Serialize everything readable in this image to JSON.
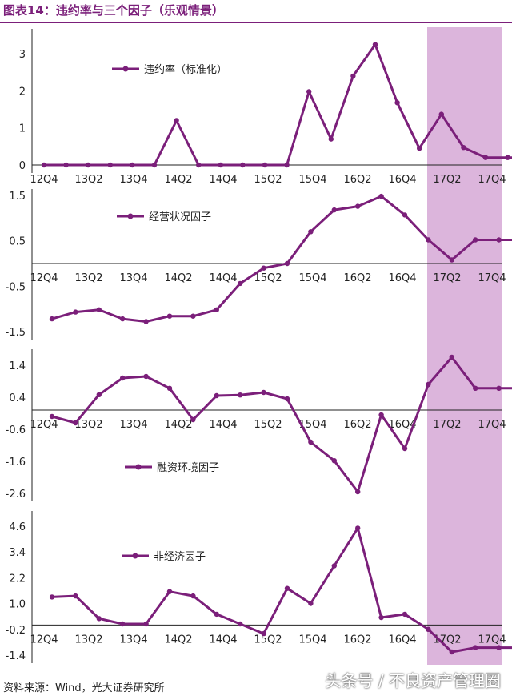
{
  "figure_title": "图表14：违约率与三个因子（乐观情景）",
  "source_note": "资料来源：Wind，光大证券研究所",
  "watermark": "头条号 / 不良资产管理圈",
  "colors": {
    "line": "#7b1f7a",
    "shade": "#dcb5dc",
    "title": "#7b1f7a"
  },
  "chart_data": [
    {
      "type": "line",
      "name": "违约率（标准化）",
      "legend": "违约率（标准化）",
      "ylim": [
        0,
        3.5
      ],
      "yticks": [
        "0",
        "1",
        "2",
        "3"
      ],
      "ytick_values": [
        0,
        1,
        2,
        3
      ],
      "xtick_labels": [
        "12Q4",
        "13Q2",
        "13Q4",
        "14Q2",
        "14Q4",
        "15Q2",
        "15Q4",
        "16Q2",
        "16Q4",
        "17Q2",
        "17Q4"
      ],
      "values": [
        0,
        0,
        0,
        0,
        0,
        0,
        1.2,
        0,
        0,
        0,
        0,
        0,
        1.98,
        0.7,
        2.4,
        3.25,
        1.68,
        0.45,
        1.37,
        0.47,
        0.2,
        0.2,
        0.2,
        0.2
      ]
    },
    {
      "type": "line",
      "name": "经营状况因子",
      "legend": "经营状况因子",
      "ylim": [
        -1.5,
        1.5
      ],
      "yticks": [
        "1.5",
        "0.5",
        "-0.5",
        "-1.5"
      ],
      "ytick_values": [
        1.5,
        0.5,
        -0.5,
        -1.5
      ],
      "xtick_labels": [
        "12Q4",
        "13Q2",
        "13Q4",
        "14Q2",
        "14Q4",
        "15Q2",
        "15Q4",
        "16Q2",
        "16Q4",
        "17Q2",
        "17Q4"
      ],
      "values": [
        -1.22,
        -1.07,
        -1.02,
        -1.22,
        -1.28,
        -1.16,
        -1.16,
        -1.02,
        -0.44,
        -0.1,
        0,
        0.7,
        1.18,
        1.26,
        1.48,
        1.07,
        0.52,
        0.08,
        0.52,
        0.52,
        0.52,
        0.52
      ]
    },
    {
      "type": "line",
      "name": "融资环境因子",
      "legend": "融资环境因子",
      "ylim": [
        -2.6,
        1.7
      ],
      "yticks": [
        "1.4",
        "0.4",
        "-0.6",
        "-1.6",
        "-2.6"
      ],
      "ytick_values": [
        1.4,
        0.4,
        -0.6,
        -1.6,
        -2.6
      ],
      "xtick_labels": [
        "12Q4",
        "13Q2",
        "13Q4",
        "14Q2",
        "14Q4",
        "15Q2",
        "15Q4",
        "16Q2",
        "16Q4",
        "17Q2",
        "17Q4"
      ],
      "values": [
        -0.2,
        -0.4,
        0.48,
        1.0,
        1.05,
        0.68,
        -0.3,
        0.45,
        0.47,
        0.55,
        0.35,
        -1.0,
        -1.58,
        -2.55,
        -0.15,
        -1.2,
        0.8,
        1.65,
        0.68,
        0.68,
        0.68,
        0.68
      ]
    },
    {
      "type": "line",
      "name": "非经济因子",
      "legend": "非经济因子",
      "ylim": [
        -1.4,
        5.0
      ],
      "yticks": [
        "4.6",
        "3.4",
        "2.2",
        "1.0",
        "-0.2",
        "-1.4"
      ],
      "ytick_values": [
        4.6,
        3.4,
        2.2,
        1.0,
        -0.2,
        -1.4
      ],
      "xtick_labels": [
        "12Q4",
        "13Q2",
        "13Q4",
        "14Q2",
        "14Q4",
        "15Q2",
        "15Q4",
        "16Q2",
        "16Q4",
        "17Q2",
        "17Q4"
      ],
      "values": [
        1.3,
        1.35,
        0.3,
        0.05,
        0.05,
        1.55,
        1.35,
        0.5,
        0.05,
        -0.4,
        1.7,
        1.0,
        2.75,
        4.5,
        0.35,
        0.5,
        -0.2,
        -1.25,
        -1.05,
        -1.05,
        -1.05,
        -1.05
      ]
    }
  ]
}
